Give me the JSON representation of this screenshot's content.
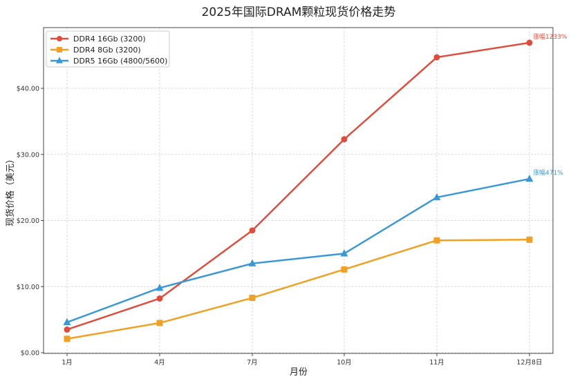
{
  "chart_data": {
    "type": "line",
    "title": "2025年国际DRAM颗粒现货价格走势",
    "xlabel": "月份",
    "ylabel": "现货价格（美元）",
    "categories": [
      "1月",
      "4月",
      "7月",
      "10月",
      "11月",
      "12月8日"
    ],
    "ylim": [
      0,
      48.5
    ],
    "yticks": [
      0,
      10,
      20,
      30,
      40
    ],
    "ytick_labels": [
      "$0.00",
      "$10.00",
      "$20.00",
      "$30.00",
      "$40.00"
    ],
    "grid": true,
    "legend_position": "upper left",
    "series": [
      {
        "name": "DDR4 16Gb (3200)",
        "color": "#e04c3c",
        "marker": "circle",
        "values": [
          3.5,
          8.2,
          18.5,
          32.3,
          44.7,
          46.9
        ]
      },
      {
        "name": "DDR4 8Gb (3200)",
        "color": "#f0a022",
        "marker": "square",
        "values": [
          2.1,
          4.5,
          8.3,
          12.6,
          17.0,
          17.1
        ]
      },
      {
        "name": "DDR5 16Gb (4800/5600)",
        "color": "#3a98d6",
        "marker": "triangle",
        "values": [
          4.6,
          9.8,
          13.5,
          15.0,
          23.5,
          26.3
        ]
      }
    ],
    "annotations": [
      {
        "text": "涨幅1233%",
        "series": 0,
        "point": 5,
        "color": "#e04c3c"
      },
      {
        "text": "涨幅471%",
        "series": 2,
        "point": 5,
        "color": "#3a98d6"
      }
    ]
  }
}
